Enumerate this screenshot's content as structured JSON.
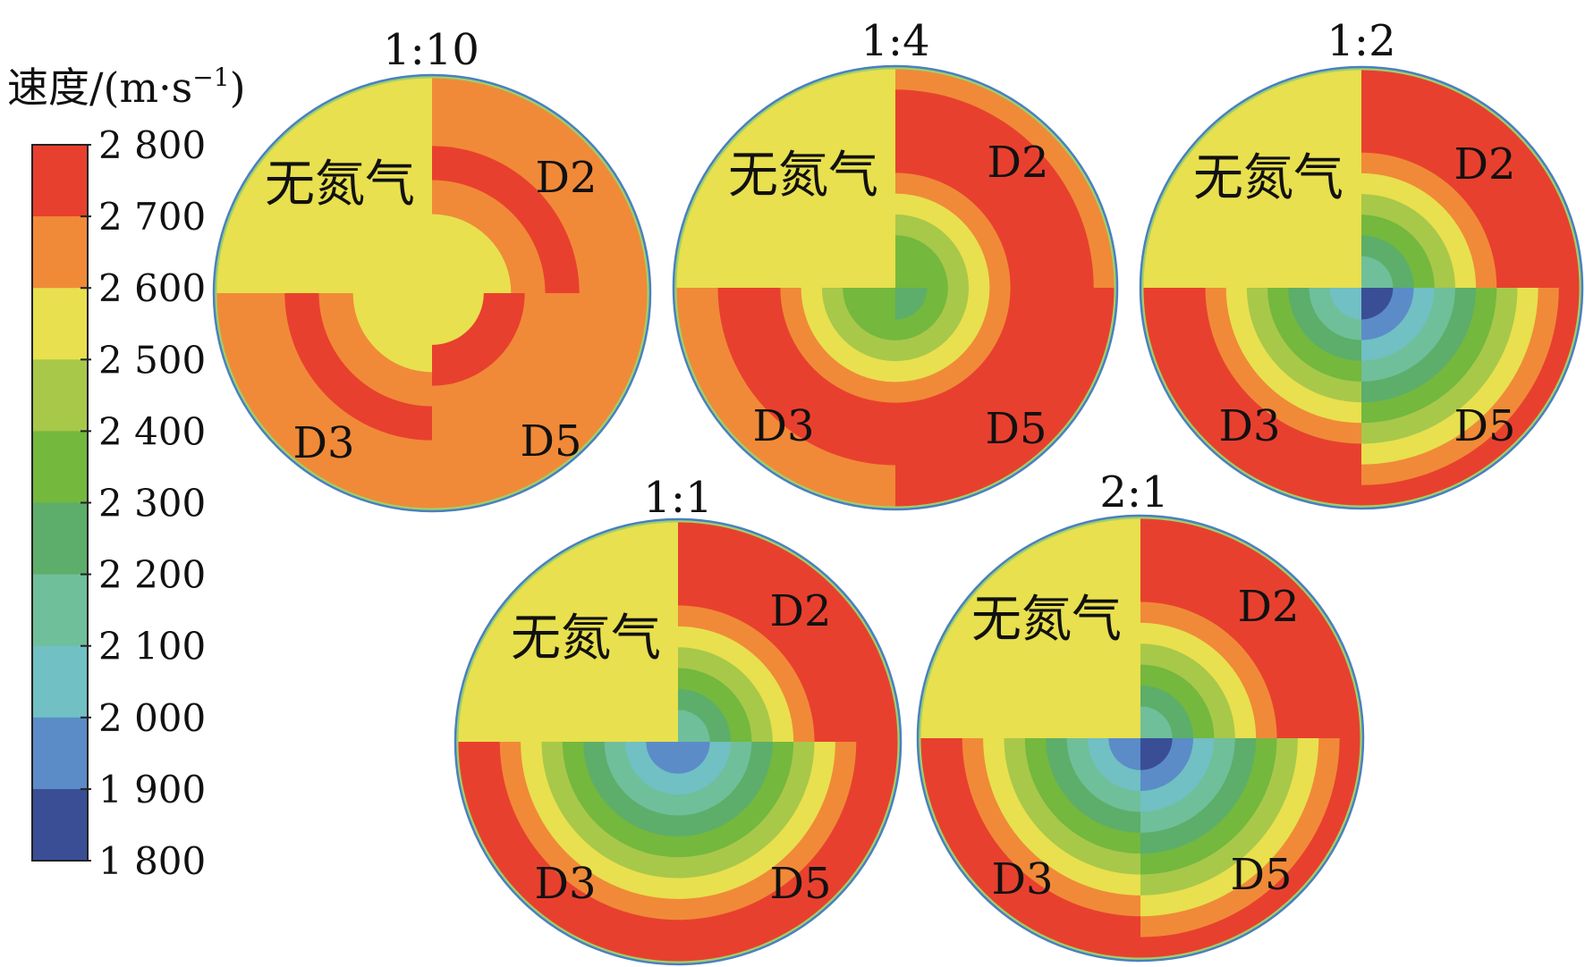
{
  "chart_data": {
    "type": "heatmap",
    "colorbar": {
      "title": "速度/(m·s",
      "title_sup": "−1",
      "title_close": ")",
      "ticks": [
        "2 800",
        "2 700",
        "2 600",
        "2 500",
        "2 400",
        "2 300",
        "2 200",
        "2 100",
        "2 000",
        "1 900",
        "1 800"
      ],
      "levels": [
        {
          "from": 2700,
          "to": 2800,
          "color": "#e8402e"
        },
        {
          "from": 2600,
          "to": 2700,
          "color": "#f08a38"
        },
        {
          "from": 2500,
          "to": 2600,
          "color": "#e8e04e"
        },
        {
          "from": 2400,
          "to": 2500,
          "color": "#a8c84a"
        },
        {
          "from": 2300,
          "to": 2400,
          "color": "#74b83e"
        },
        {
          "from": 2200,
          "to": 2300,
          "color": "#5cae6a"
        },
        {
          "from": 2100,
          "to": 2200,
          "color": "#6fbf9a"
        },
        {
          "from": 2000,
          "to": 2100,
          "color": "#70c0c4"
        },
        {
          "from": 1900,
          "to": 2000,
          "color": "#5b8cc8"
        },
        {
          "from": 1800,
          "to": 1900,
          "color": "#3a4e96"
        }
      ]
    },
    "quadrant_labels": {
      "no_nitrogen": "无氮气",
      "d2": "D2",
      "d3": "D3",
      "d5": "D5"
    },
    "colors": {
      "no_nitrogen_fill": "#f0cd44",
      "rim": "#4a7fc1"
    },
    "panels": [
      {
        "title": "1:10",
        "quadrants": {
          "no_nitrogen": [
            2500
          ],
          "d2": [
            2500,
            2500,
            2650,
            2750,
            2650,
            2650
          ],
          "d3": [
            2500,
            2500,
            2650,
            2750,
            2650,
            2650
          ],
          "d5": [
            2500,
            2750,
            2650,
            2650,
            2650
          ]
        }
      },
      {
        "title": "1:4",
        "quadrants": {
          "no_nitrogen": [
            2500
          ],
          "d2": [
            2350,
            2350,
            2450,
            2550,
            2650,
            2750,
            2750,
            2750,
            2750,
            2650
          ],
          "d3": [
            2350,
            2350,
            2450,
            2550,
            2650,
            2750,
            2750,
            2750,
            2650,
            2650
          ],
          "d5": [
            2250,
            2350,
            2450,
            2550,
            2650,
            2750,
            2750,
            2750,
            2750,
            2750
          ]
        }
      },
      {
        "title": "1:2",
        "quadrants": {
          "no_nitrogen": [
            2500
          ],
          "d2": [
            2150,
            2250,
            2350,
            2450,
            2550,
            2650,
            2750,
            2750,
            2750,
            2750
          ],
          "d3": [
            2050,
            2150,
            2250,
            2350,
            2450,
            2550,
            2650,
            2750,
            2750,
            2750
          ],
          "d5": [
            1850,
            1950,
            2050,
            2150,
            2250,
            2350,
            2450,
            2550,
            2650,
            2750
          ]
        }
      },
      {
        "title": "1:1",
        "quadrants": {
          "no_nitrogen": [
            2500
          ],
          "d2": [
            2150,
            2250,
            2350,
            2450,
            2550,
            2650,
            2750,
            2750,
            2750,
            2750
          ],
          "d3": [
            1950,
            2050,
            2150,
            2250,
            2350,
            2450,
            2550,
            2650,
            2750,
            2750
          ],
          "d5": [
            1950,
            2050,
            2150,
            2250,
            2350,
            2450,
            2550,
            2650,
            2750,
            2750
          ]
        }
      },
      {
        "title": "2:1",
        "quadrants": {
          "no_nitrogen": [
            2500
          ],
          "d2": [
            2150,
            2250,
            2350,
            2450,
            2550,
            2650,
            2750,
            2750,
            2750,
            2750
          ],
          "d3": [
            1950,
            2050,
            2150,
            2250,
            2350,
            2450,
            2550,
            2650,
            2750,
            2750
          ],
          "d5": [
            1850,
            1950,
            2050,
            2150,
            2250,
            2350,
            2450,
            2550,
            2650,
            2750
          ]
        }
      }
    ]
  }
}
